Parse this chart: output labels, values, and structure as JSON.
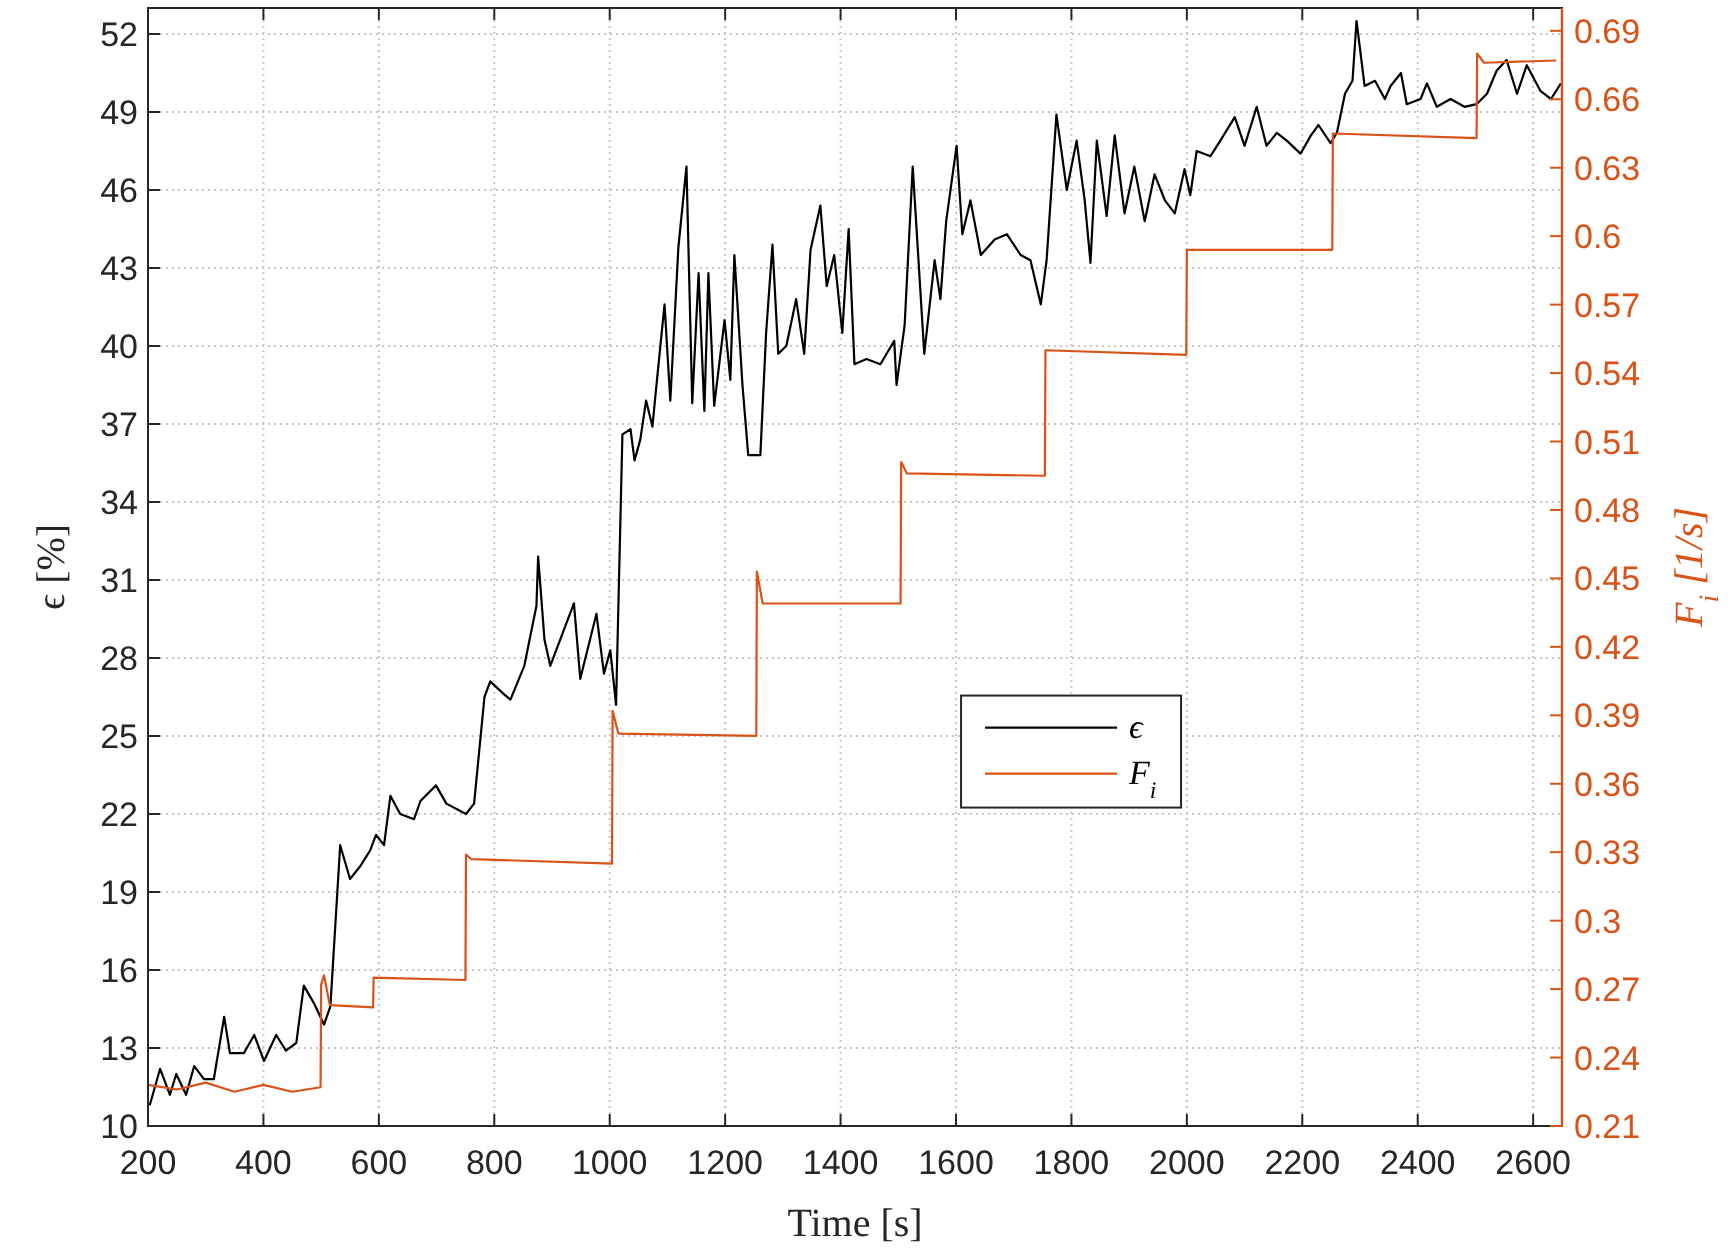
{
  "chart_data": {
    "type": "line",
    "xlabel": "Time [s]",
    "ylabel": "ϵ [%]",
    "y2label": "F$_{i}$ [1/s]",
    "xlim": [
      200,
      2650
    ],
    "xticks": [
      200,
      400,
      600,
      800,
      1000,
      1200,
      1400,
      1600,
      1800,
      2000,
      2200,
      2400,
      2600
    ],
    "ylim": [
      10,
      53
    ],
    "yticks": [
      10,
      13,
      16,
      19,
      22,
      25,
      28,
      31,
      34,
      37,
      40,
      43,
      46,
      49,
      52
    ],
    "y2lim": [
      0.21,
      0.7
    ],
    "y2ticks": [
      0.21,
      0.24,
      0.27,
      {
        "value": 0.3,
        "label": "0.3"
      },
      0.33,
      0.36,
      0.39,
      0.42,
      0.45,
      0.48,
      0.51,
      0.54,
      0.57,
      {
        "value": 0.6,
        "label": "0.6"
      },
      0.63,
      0.66,
      0.69
    ],
    "grid": true,
    "legend": "center",
    "line_style": "solid",
    "marker": "none",
    "series": [
      {
        "name": "ϵ",
        "color": "#000000",
        "x": [
          203,
          221,
          238,
          249,
          266,
          280,
          297,
          314,
          332,
          342,
          366,
          384,
          401,
          422,
          439,
          457,
          470,
          488,
          505,
          516,
          533,
          550,
          568,
          585,
          595,
          609,
          620,
          637,
          661,
          672,
          699,
          717,
          751,
          765,
          783,
          793,
          817,
          828,
          852,
          873,
          876,
          887,
          897,
          938,
          949,
          977,
          990,
          1001,
          1011,
          1022,
          1036,
          1043,
          1053,
          1063,
          1074,
          1081,
          1095,
          1105,
          1119,
          1133,
          1143,
          1154,
          1164,
          1171,
          1181,
          1199,
          1209,
          1216,
          1230,
          1240,
          1261,
          1271,
          1282,
          1292,
          1306,
          1323,
          1337,
          1348,
          1365,
          1376,
          1389,
          1403,
          1414,
          1424,
          1445,
          1469,
          1493,
          1497,
          1511,
          1525,
          1545,
          1563,
          1573,
          1583,
          1601,
          1611,
          1625,
          1643,
          1667,
          1688,
          1712,
          1729,
          1747,
          1757,
          1774,
          1792,
          1809,
          1823,
          1833,
          1844,
          1861,
          1875,
          1892,
          1909,
          1927,
          1944,
          1962,
          1979,
          1996,
          2006,
          2017,
          2041,
          2058,
          2083,
          2100,
          2121,
          2138,
          2156,
          2173,
          2197,
          2215,
          2228,
          2249,
          2260,
          2274,
          2287,
          2294,
          2308,
          2326,
          2343,
          2353,
          2371,
          2381,
          2405,
          2416,
          2433,
          2457,
          2481,
          2502,
          2520,
          2537,
          2554,
          2572,
          2589,
          2613,
          2631,
          2648
        ],
        "values": [
          10.8,
          12.2,
          11.2,
          12.0,
          11.2,
          12.3,
          11.8,
          11.8,
          14.2,
          12.8,
          12.8,
          13.5,
          12.5,
          13.5,
          12.9,
          13.2,
          15.4,
          14.7,
          13.9,
          14.6,
          20.8,
          19.5,
          20.0,
          20.6,
          21.2,
          20.8,
          22.7,
          22.0,
          21.8,
          22.5,
          23.1,
          22.4,
          22.0,
          22.4,
          26.5,
          27.1,
          26.6,
          26.4,
          27.7,
          30.0,
          31.9,
          28.7,
          27.7,
          30.1,
          27.2,
          29.7,
          27.4,
          28.3,
          26.2,
          36.6,
          36.8,
          35.6,
          36.4,
          37.9,
          36.9,
          38.5,
          41.6,
          37.9,
          43.8,
          46.9,
          37.8,
          42.8,
          37.5,
          42.8,
          37.7,
          41.0,
          38.7,
          43.5,
          38.5,
          35.8,
          35.8,
          40.5,
          43.9,
          39.7,
          40.0,
          41.8,
          39.7,
          43.7,
          45.4,
          42.3,
          43.5,
          40.5,
          44.5,
          39.3,
          39.5,
          39.3,
          40.2,
          38.5,
          40.8,
          46.9,
          39.7,
          43.3,
          41.8,
          44.8,
          47.7,
          44.3,
          45.6,
          43.5,
          44.1,
          44.3,
          43.5,
          43.3,
          41.6,
          43.3,
          48.9,
          46.0,
          47.9,
          45.6,
          43.2,
          47.9,
          45.0,
          48.1,
          45.1,
          46.9,
          44.8,
          46.6,
          45.6,
          45.1,
          46.8,
          45.8,
          47.5,
          47.3,
          47.9,
          48.8,
          47.7,
          49.2,
          47.7,
          48.2,
          47.9,
          47.4,
          48.1,
          48.5,
          47.8,
          48.2,
          49.7,
          50.2,
          52.5,
          50.0,
          50.2,
          49.5,
          50.0,
          50.5,
          49.3,
          49.5,
          50.1,
          49.2,
          49.5,
          49.2,
          49.3,
          49.7,
          50.6,
          51.0,
          49.7,
          50.8,
          49.8,
          49.5,
          50.1
        ]
      },
      {
        "name": "F$_{i}$",
        "color": "#d95319",
        "axis": "y2",
        "x": [
          200,
          250,
          300,
          350,
          400,
          450,
          499,
          500,
          505,
          515,
          590,
          591,
          750,
          751,
          760,
          1004,
          1005,
          1015,
          1254,
          1255,
          1265,
          1504,
          1505,
          1515,
          1754,
          1755,
          1999,
          2000,
          2252,
          2253,
          2502,
          2503,
          2515,
          2640
        ],
        "values": [
          0.228,
          0.226,
          0.229,
          0.225,
          0.228,
          0.225,
          0.227,
          0.272,
          0.276,
          0.263,
          0.262,
          0.275,
          0.274,
          0.329,
          0.327,
          0.325,
          0.392,
          0.382,
          0.381,
          0.453,
          0.439,
          0.439,
          0.501,
          0.496,
          0.495,
          0.55,
          0.548,
          0.594,
          0.594,
          0.645,
          0.643,
          0.68,
          0.676,
          0.677
        ]
      }
    ]
  }
}
